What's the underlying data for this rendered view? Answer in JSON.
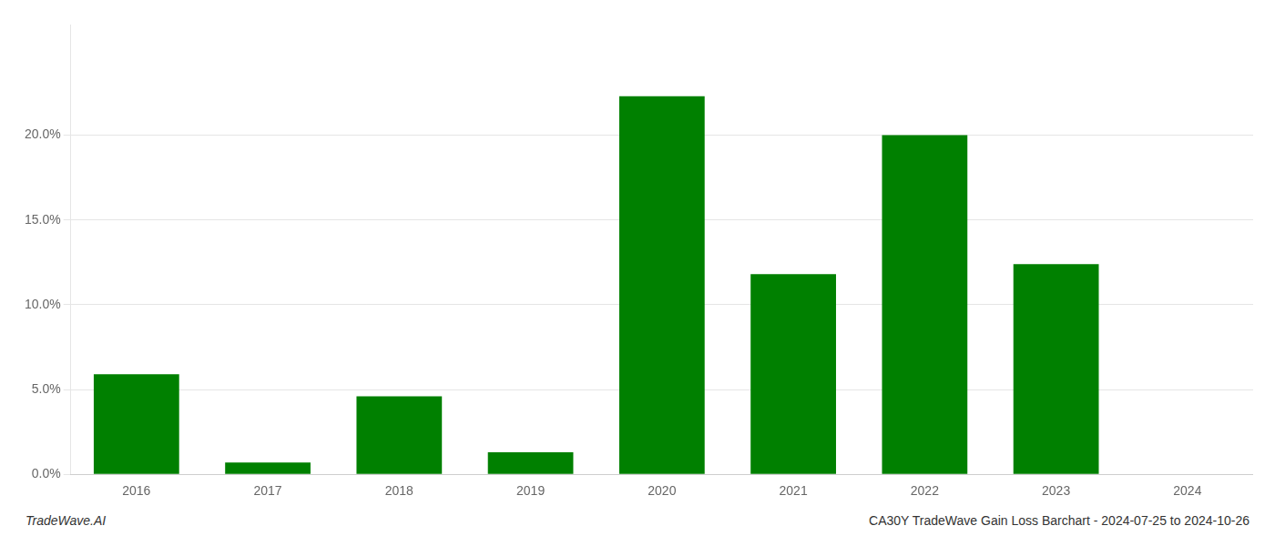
{
  "chart_data": {
    "type": "bar",
    "categories": [
      "2016",
      "2017",
      "2018",
      "2019",
      "2020",
      "2021",
      "2022",
      "2023",
      "2024"
    ],
    "values": [
      0.059,
      0.007,
      0.046,
      0.013,
      0.223,
      0.118,
      0.2,
      0.124,
      0.0
    ],
    "color": "#008000",
    "ylim": [
      0,
      0.265
    ],
    "yticks": [
      {
        "value": 0.0,
        "label": "0.0%"
      },
      {
        "value": 0.05,
        "label": "5.0%"
      },
      {
        "value": 0.1,
        "label": "10.0%"
      },
      {
        "value": 0.15,
        "label": "15.0%"
      },
      {
        "value": 0.2,
        "label": "20.0%"
      }
    ],
    "grid": true,
    "annotations": [
      "TradeWave.AI",
      "CA30Y TradeWave Gain Loss Barchart - 2024-07-25 to 2024-10-26"
    ]
  }
}
